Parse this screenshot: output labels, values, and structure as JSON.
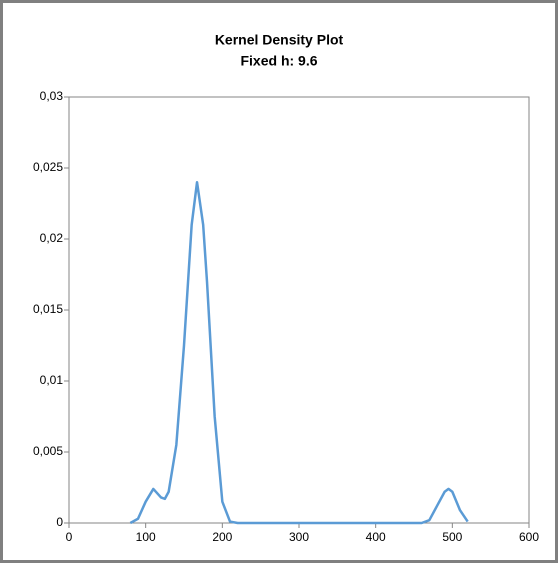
{
  "chart_data": {
    "type": "line",
    "title": "Kernel Density Plot",
    "subtitle": "Fixed h: 9.6",
    "series": [
      {
        "color": "#5b9bd5",
        "x": [
          80,
          90,
          100,
          110,
          120,
          125,
          130,
          140,
          150,
          160,
          167,
          175,
          180,
          190,
          200,
          210,
          220,
          300,
          400,
          460,
          470,
          480,
          490,
          495,
          500,
          510,
          520
        ],
        "values": [
          0,
          0.0003,
          0.0015,
          0.0024,
          0.0018,
          0.0017,
          0.0022,
          0.0055,
          0.0125,
          0.021,
          0.024,
          0.021,
          0.017,
          0.0075,
          0.0015,
          0.0001,
          0,
          0,
          0,
          0,
          0.0002,
          0.0012,
          0.0022,
          0.0024,
          0.0022,
          0.0009,
          0.0001
        ]
      }
    ],
    "xlim": [
      0,
      600
    ],
    "xticks": [
      0,
      100,
      200,
      300,
      400,
      500,
      600
    ],
    "ylim": [
      0,
      0.03
    ],
    "yticks": [
      0,
      {
        "value": 0.005,
        "label": "0,005"
      },
      {
        "value": 0.01,
        "label": "0,01"
      },
      {
        "value": 0.015,
        "label": "0,015"
      },
      {
        "value": 0.02,
        "label": "0,02"
      },
      {
        "value": 0.025,
        "label": "0,025"
      },
      {
        "value": 0.03,
        "label": "0,03"
      }
    ],
    "grid": false
  }
}
